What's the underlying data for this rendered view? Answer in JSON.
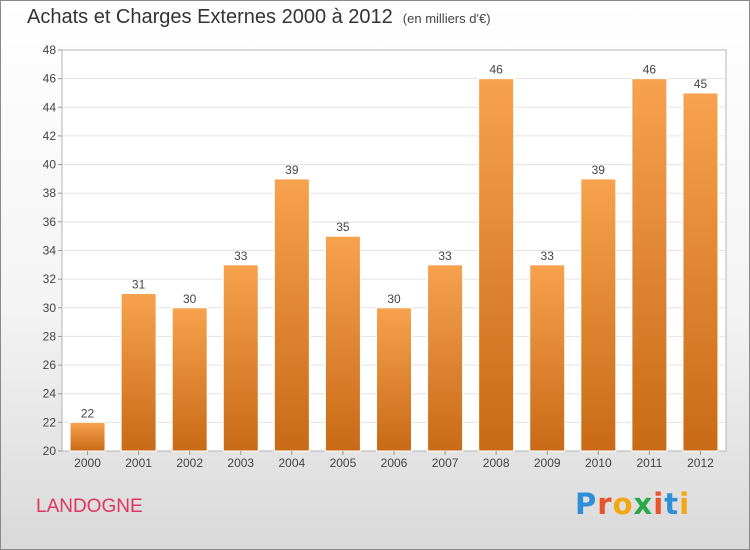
{
  "title": "Achats et Charges Externes 2000 à 2012",
  "unit_note": "(en milliers d'€)",
  "commune": "LANDOGNE",
  "logo": {
    "letters": [
      "P",
      "r",
      "o",
      "x",
      "i",
      "t",
      "i"
    ],
    "colors": [
      "#2e8fd8",
      "#e8542a",
      "#f2a60f",
      "#2aa84a",
      "#e8542a",
      "#2e8fd8",
      "#f2a60f"
    ]
  },
  "colors": {
    "bar_top": "#f7a24e",
    "bar_bottom": "#c86a16",
    "commune": "#e0355f"
  },
  "chart_data": {
    "type": "bar",
    "title": "Achats et Charges Externes 2000 à 2012",
    "subtitle": "(en milliers d'€)",
    "categories": [
      "2000",
      "2001",
      "2002",
      "2003",
      "2004",
      "2005",
      "2006",
      "2007",
      "2008",
      "2009",
      "2010",
      "2011",
      "2012"
    ],
    "values": [
      22,
      31,
      30,
      33,
      39,
      35,
      30,
      33,
      46,
      33,
      39,
      46,
      45
    ],
    "ylim": [
      20,
      48
    ],
    "yticks": [
      20,
      22,
      24,
      26,
      28,
      30,
      32,
      34,
      36,
      38,
      40,
      42,
      44,
      46,
      48
    ],
    "grid": true,
    "xlabel": "",
    "ylabel": ""
  }
}
